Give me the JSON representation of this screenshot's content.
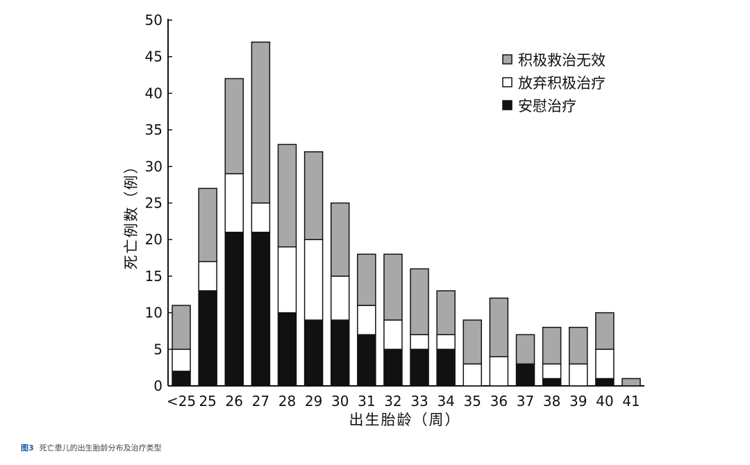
{
  "chart_data": {
    "type": "bar",
    "stacked": true,
    "xlabel": "出生胎龄（周）",
    "ylabel": "死亡例数（例）",
    "ylim": [
      0,
      50
    ],
    "yticks": [
      0,
      5,
      10,
      15,
      20,
      25,
      30,
      35,
      40,
      45,
      50
    ],
    "grid": false,
    "legend_position": "top-right",
    "categories": [
      "<25",
      "25",
      "26",
      "27",
      "28",
      "29",
      "30",
      "31",
      "32",
      "33",
      "34",
      "35",
      "36",
      "37",
      "38",
      "39",
      "40",
      "41"
    ],
    "series": [
      {
        "name": "安慰治疗",
        "color": "#111111",
        "values": [
          2,
          13,
          21,
          21,
          10,
          9,
          9,
          7,
          5,
          5,
          5,
          0,
          0,
          3,
          1,
          0,
          1,
          0
        ]
      },
      {
        "name": "放弃积极治疗",
        "color": "#ffffff",
        "values": [
          3,
          4,
          8,
          4,
          9,
          11,
          6,
          4,
          4,
          2,
          2,
          3,
          4,
          0,
          2,
          3,
          4,
          0
        ]
      },
      {
        "name": "积极救治无效",
        "color": "#a8a8a8",
        "values": [
          6,
          10,
          13,
          22,
          14,
          12,
          10,
          7,
          9,
          9,
          6,
          6,
          8,
          4,
          5,
          5,
          5,
          1
        ]
      }
    ],
    "legend_order": [
      "积极救治无效",
      "放弃积极治疗",
      "安慰治疗"
    ]
  },
  "caption": {
    "figure_label": "图3",
    "text": "死亡患儿的出生胎龄分布及治疗类型"
  }
}
